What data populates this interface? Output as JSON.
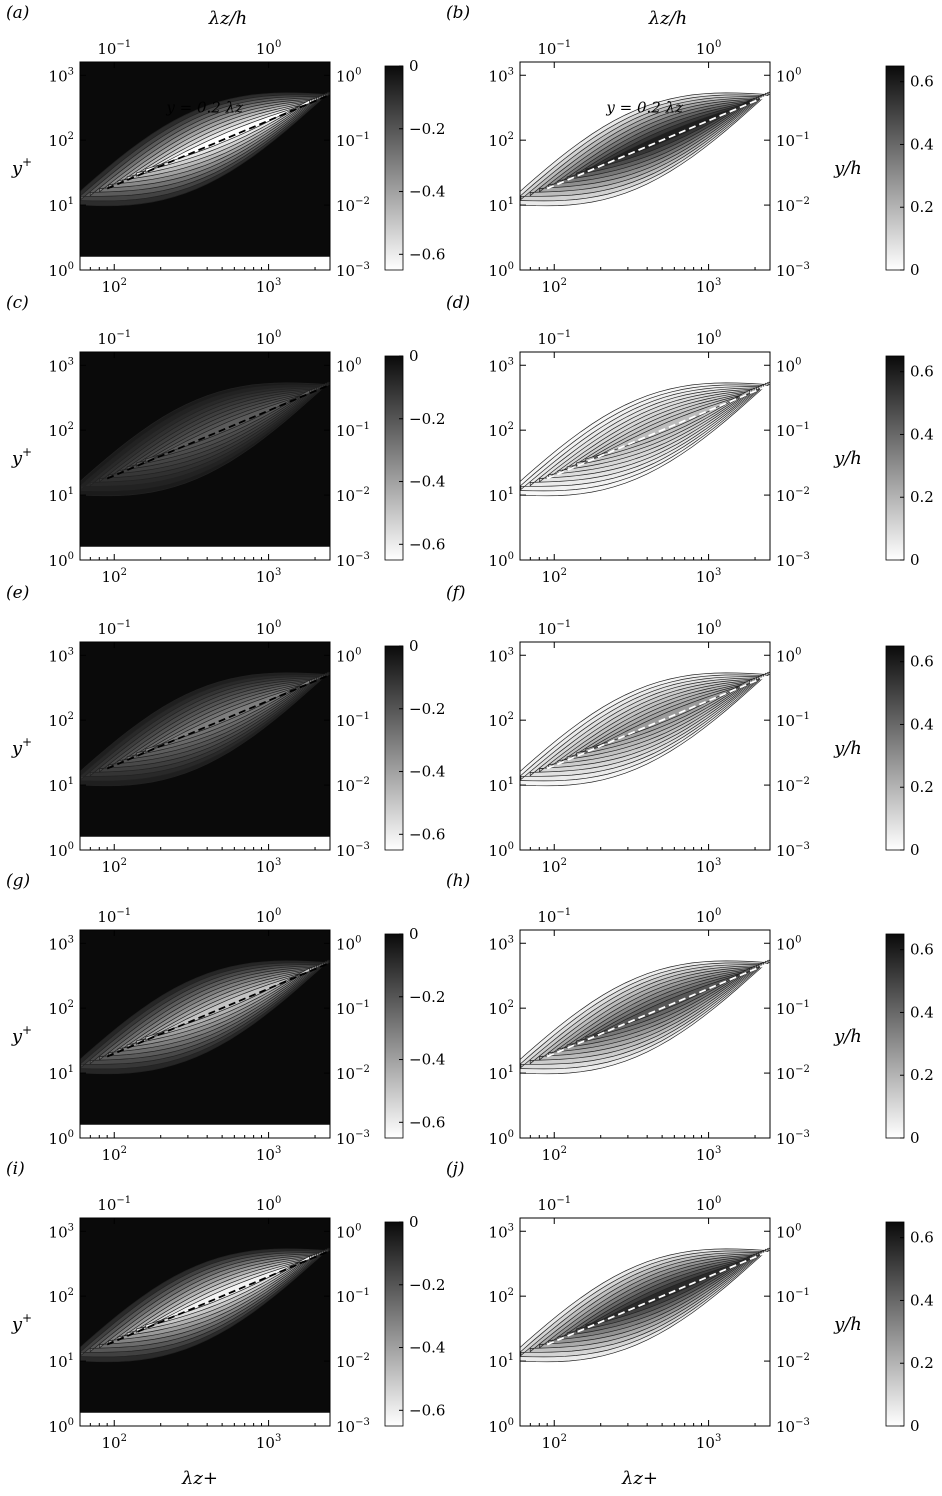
{
  "figure": {
    "top_axis_label": "λz/h",
    "bottom_axis_label": "λz+",
    "left_axis_label": "y+",
    "right_axis_label": "y/h",
    "annotation": "y = 0.2 λz"
  },
  "chart_data": [
    {
      "panel": "(a)",
      "type": "heatmap",
      "colorbar": "negative",
      "fill": "dark",
      "level": 1.0,
      "x_label": "λz+",
      "x_scale": "log",
      "xlim": [
        60,
        2500
      ],
      "x_ticks": [
        "10^2",
        "10^3"
      ],
      "y_label": "y+",
      "y_scale": "log",
      "ylim": [
        1,
        1600
      ],
      "y_ticks": [
        "10^0",
        "10^1",
        "10^2",
        "10^3"
      ],
      "top_axis": {
        "label": "λz/h",
        "ticks": [
          "10^-1",
          "10^0"
        ]
      },
      "right_axis": {
        "label": "y/h",
        "ticks": [
          "10^-3",
          "10^-2",
          "10^-1",
          "10^0"
        ]
      },
      "colorbar_ticks": [
        "0",
        "−0.2",
        "−0.4",
        "−0.6"
      ],
      "colorbar_range": [
        -0.65,
        0
      ],
      "reference_line": {
        "label": "y = 0.2 λz",
        "color": "black"
      }
    },
    {
      "panel": "(b)",
      "type": "heatmap",
      "colorbar": "positive",
      "fill": "light",
      "level": 1.0,
      "x_label": "λz+",
      "x_scale": "log",
      "xlim": [
        60,
        2500
      ],
      "x_ticks": [
        "10^2",
        "10^3"
      ],
      "y_label": "y+",
      "y_scale": "log",
      "ylim": [
        1,
        1600
      ],
      "y_ticks": [
        "10^0",
        "10^1",
        "10^2",
        "10^3"
      ],
      "top_axis": {
        "label": "λz/h",
        "ticks": [
          "10^-1",
          "10^0"
        ]
      },
      "right_axis": {
        "label": "y/h",
        "ticks": [
          "10^-3",
          "10^-2",
          "10^-1",
          "10^0"
        ]
      },
      "colorbar_ticks": [
        "0",
        "0.2",
        "0.4",
        "0.6"
      ],
      "colorbar_range": [
        0,
        0.65
      ],
      "reference_line": {
        "label": "y = 0.2 λz",
        "color": "white"
      }
    },
    {
      "panel": "(c)",
      "type": "heatmap",
      "colorbar": "negative",
      "fill": "dark",
      "level": 0.3,
      "x_label": "λz+",
      "x_scale": "log",
      "xlim": [
        60,
        2500
      ],
      "x_ticks": [
        "10^2",
        "10^3"
      ],
      "y_label": "y+",
      "y_scale": "log",
      "ylim": [
        1,
        1600
      ],
      "y_ticks": [
        "10^0",
        "10^1",
        "10^2",
        "10^3"
      ],
      "top_axis": {
        "label": "λz/h",
        "ticks": [
          "10^-1",
          "10^0"
        ]
      },
      "right_axis": {
        "label": "y/h",
        "ticks": [
          "10^-3",
          "10^-2",
          "10^-1",
          "10^0"
        ]
      },
      "colorbar_ticks": [
        "0",
        "−0.2",
        "−0.4",
        "−0.6"
      ],
      "colorbar_range": [
        -0.65,
        0
      ],
      "reference_line": {
        "color": "black"
      }
    },
    {
      "panel": "(d)",
      "type": "heatmap",
      "colorbar": "positive",
      "fill": "light",
      "level": 0.3,
      "x_label": "λz+",
      "x_scale": "log",
      "xlim": [
        60,
        2500
      ],
      "x_ticks": [
        "10^2",
        "10^3"
      ],
      "y_label": "y+",
      "y_scale": "log",
      "ylim": [
        1,
        1600
      ],
      "y_ticks": [
        "10^0",
        "10^1",
        "10^2",
        "10^3"
      ],
      "top_axis": {
        "label": "λz/h",
        "ticks": [
          "10^-1",
          "10^0"
        ]
      },
      "right_axis": {
        "label": "y/h",
        "ticks": [
          "10^-3",
          "10^-2",
          "10^-1",
          "10^0"
        ]
      },
      "colorbar_ticks": [
        "0",
        "0.2",
        "0.4",
        "0.6"
      ],
      "colorbar_range": [
        0,
        0.65
      ],
      "reference_line": {
        "color": "white"
      }
    },
    {
      "panel": "(e)",
      "type": "heatmap",
      "colorbar": "negative",
      "fill": "dark",
      "level": 0.45,
      "x_label": "λz+",
      "x_scale": "log",
      "xlim": [
        60,
        2500
      ],
      "x_ticks": [
        "10^2",
        "10^3"
      ],
      "y_label": "y+",
      "y_scale": "log",
      "ylim": [
        1,
        1600
      ],
      "y_ticks": [
        "10^0",
        "10^1",
        "10^2",
        "10^3"
      ],
      "top_axis": {
        "label": "λz/h",
        "ticks": [
          "10^-1",
          "10^0"
        ]
      },
      "right_axis": {
        "label": "y/h",
        "ticks": [
          "10^-3",
          "10^-2",
          "10^-1",
          "10^0"
        ]
      },
      "colorbar_ticks": [
        "0",
        "−0.2",
        "−0.4",
        "−0.6"
      ],
      "colorbar_range": [
        -0.65,
        0
      ],
      "reference_line": {
        "color": "black"
      }
    },
    {
      "panel": "(f)",
      "type": "heatmap",
      "colorbar": "positive",
      "fill": "light",
      "level": 0.45,
      "x_label": "λz+",
      "x_scale": "log",
      "xlim": [
        60,
        2500
      ],
      "x_ticks": [
        "10^2",
        "10^3"
      ],
      "y_label": "y+",
      "y_scale": "log",
      "ylim": [
        1,
        1600
      ],
      "y_ticks": [
        "10^0",
        "10^1",
        "10^2",
        "10^3"
      ],
      "top_axis": {
        "label": "λz/h",
        "ticks": [
          "10^-1",
          "10^0"
        ]
      },
      "right_axis": {
        "label": "y/h",
        "ticks": [
          "10^-3",
          "10^-2",
          "10^-1",
          "10^0"
        ]
      },
      "colorbar_ticks": [
        "0",
        "0.2",
        "0.4",
        "0.6"
      ],
      "colorbar_range": [
        0,
        0.65
      ],
      "reference_line": {
        "color": "white"
      }
    },
    {
      "panel": "(g)",
      "type": "heatmap",
      "colorbar": "negative",
      "fill": "dark",
      "level": 0.75,
      "x_label": "λz+",
      "x_scale": "log",
      "xlim": [
        60,
        2500
      ],
      "x_ticks": [
        "10^2",
        "10^3"
      ],
      "y_label": "y+",
      "y_scale": "log",
      "ylim": [
        1,
        1600
      ],
      "y_ticks": [
        "10^0",
        "10^1",
        "10^2",
        "10^3"
      ],
      "top_axis": {
        "label": "λz/h",
        "ticks": [
          "10^-1",
          "10^0"
        ]
      },
      "right_axis": {
        "label": "y/h",
        "ticks": [
          "10^-3",
          "10^-2",
          "10^-1",
          "10^0"
        ]
      },
      "colorbar_ticks": [
        "0",
        "−0.2",
        "−0.4",
        "−0.6"
      ],
      "colorbar_range": [
        -0.65,
        0
      ],
      "reference_line": {
        "color": "black"
      }
    },
    {
      "panel": "(h)",
      "type": "heatmap",
      "colorbar": "positive",
      "fill": "light",
      "level": 0.75,
      "x_label": "λz+",
      "x_scale": "log",
      "xlim": [
        60,
        2500
      ],
      "x_ticks": [
        "10^2",
        "10^3"
      ],
      "y_label": "y+",
      "y_scale": "log",
      "ylim": [
        1,
        1600
      ],
      "y_ticks": [
        "10^0",
        "10^1",
        "10^2",
        "10^3"
      ],
      "top_axis": {
        "label": "λz/h",
        "ticks": [
          "10^-1",
          "10^0"
        ]
      },
      "right_axis": {
        "label": "y/h",
        "ticks": [
          "10^-3",
          "10^-2",
          "10^-1",
          "10^0"
        ]
      },
      "colorbar_ticks": [
        "0",
        "0.2",
        "0.4",
        "0.6"
      ],
      "colorbar_range": [
        0,
        0.65
      ],
      "reference_line": {
        "color": "white"
      }
    },
    {
      "panel": "(i)",
      "type": "heatmap",
      "colorbar": "negative",
      "fill": "dark",
      "level": 0.95,
      "x_label": "λz+",
      "x_scale": "log",
      "xlim": [
        60,
        2500
      ],
      "x_ticks": [
        "10^2",
        "10^3"
      ],
      "y_label": "y+",
      "y_scale": "log",
      "ylim": [
        1,
        1600
      ],
      "y_ticks": [
        "10^0",
        "10^1",
        "10^2",
        "10^3"
      ],
      "top_axis": {
        "label": "λz/h",
        "ticks": [
          "10^-1",
          "10^0"
        ]
      },
      "right_axis": {
        "label": "y/h",
        "ticks": [
          "10^-3",
          "10^-2",
          "10^-1",
          "10^0"
        ]
      },
      "colorbar_ticks": [
        "0",
        "−0.2",
        "−0.4",
        "−0.6"
      ],
      "colorbar_range": [
        -0.65,
        0
      ],
      "reference_line": {
        "color": "black"
      }
    },
    {
      "panel": "(j)",
      "type": "heatmap",
      "colorbar": "positive",
      "fill": "light",
      "level": 0.95,
      "x_label": "λz+",
      "x_scale": "log",
      "xlim": [
        60,
        2500
      ],
      "x_ticks": [
        "10^2",
        "10^3"
      ],
      "y_label": "y+",
      "y_scale": "log",
      "ylim": [
        1,
        1600
      ],
      "y_ticks": [
        "10^0",
        "10^1",
        "10^2",
        "10^3"
      ],
      "top_axis": {
        "label": "λz/h",
        "ticks": [
          "10^-1",
          "10^0"
        ]
      },
      "right_axis": {
        "label": "y/h",
        "ticks": [
          "10^-3",
          "10^-2",
          "10^-1",
          "10^0"
        ]
      },
      "colorbar_ticks": [
        "0",
        "0.2",
        "0.4",
        "0.6"
      ],
      "colorbar_range": [
        0,
        0.65
      ],
      "reference_line": {
        "color": "white"
      }
    }
  ]
}
